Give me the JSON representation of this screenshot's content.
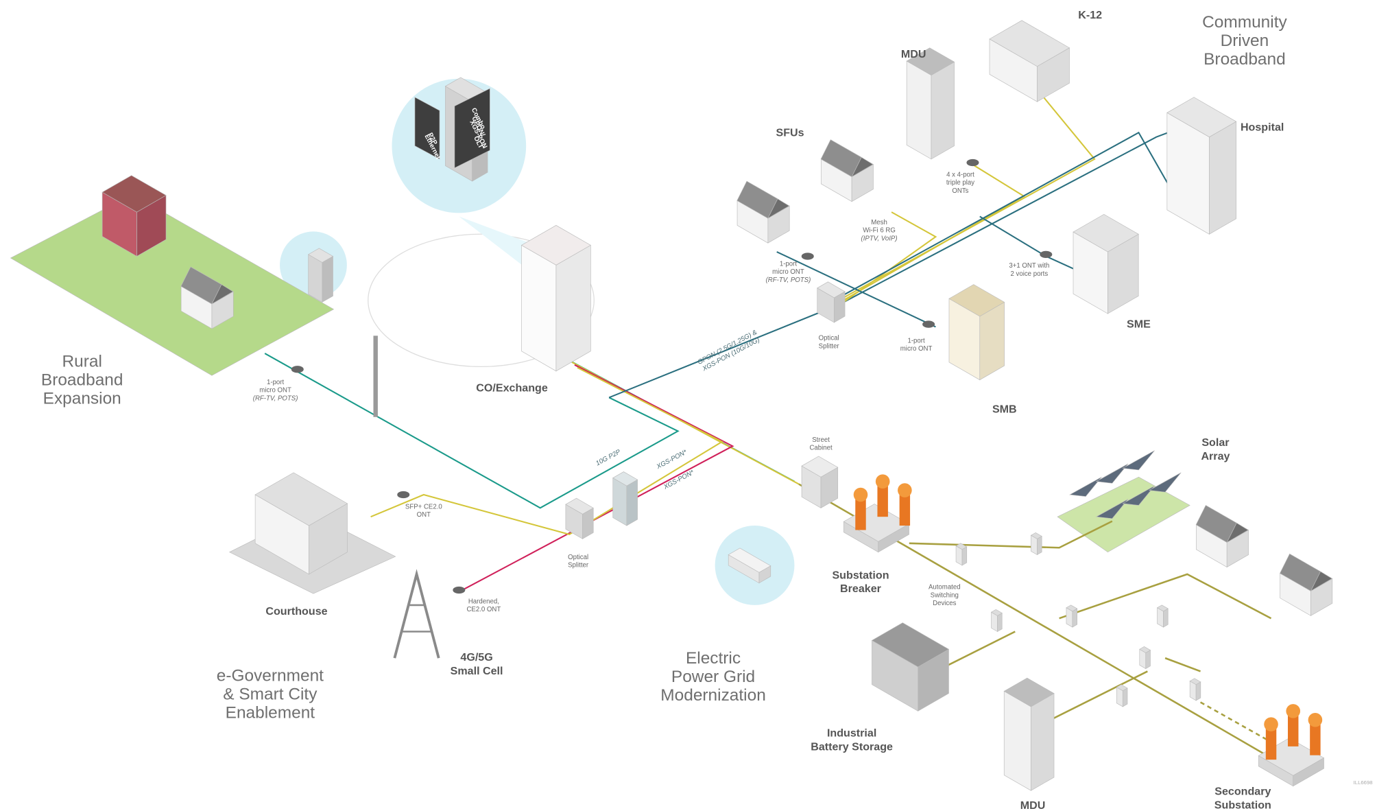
{
  "sections": [
    {
      "lines": [
        "Rural",
        "Broadband",
        "Expansion"
      ]
    },
    {
      "lines": [
        "Community",
        "Driven",
        "Broadband"
      ]
    },
    {
      "lines": [
        "e-Government",
        "& Smart City",
        "Enablement"
      ]
    },
    {
      "lines": [
        "Electric",
        "Power Grid",
        "Modernization"
      ]
    }
  ],
  "nodes": [
    {
      "lines": [
        "CO/Exchange"
      ]
    },
    {
      "lines": [
        "SFUs"
      ]
    },
    {
      "lines": [
        "MDU"
      ]
    },
    {
      "lines": [
        "K-12"
      ]
    },
    {
      "lines": [
        "Hospital"
      ]
    },
    {
      "lines": [
        "SME"
      ]
    },
    {
      "lines": [
        "SMB"
      ]
    },
    {
      "lines": [
        "Solar",
        "Array"
      ]
    },
    {
      "lines": [
        "Courthouse"
      ]
    },
    {
      "lines": [
        "4G/5G",
        "Small Cell"
      ]
    },
    {
      "lines": [
        "Substation",
        "Breaker"
      ]
    },
    {
      "lines": [
        "Industrial",
        "Battery Storage"
      ]
    },
    {
      "lines": [
        "MDU"
      ]
    },
    {
      "lines": [
        "Secondary",
        "Substation"
      ]
    }
  ],
  "devices": [
    {
      "lines": [
        "1-port",
        "micro ONT",
        "(RF-TV, POTS)"
      ]
    },
    {
      "lines": [
        "1-port",
        "micro ONT",
        "(RF-TV, POTS)"
      ]
    },
    {
      "lines": [
        "Mesh",
        "Wi-Fi 6 RG",
        "(IPTV, VoIP)"
      ]
    },
    {
      "lines": [
        "4 x 4-port",
        "triple play",
        "ONTs"
      ]
    },
    {
      "lines": [
        "3+1 ONT with",
        "2 voice ports"
      ]
    },
    {
      "lines": [
        "1-port",
        "micro ONT"
      ]
    },
    {
      "lines": [
        "Optical",
        "Splitter"
      ]
    },
    {
      "lines": [
        "Street",
        "Cabinet"
      ]
    },
    {
      "lines": [
        "Automated",
        "Switching",
        "Devices"
      ]
    },
    {
      "lines": [
        "SFP+ CE2.0",
        "ONT"
      ]
    },
    {
      "lines": [
        "Optical",
        "Splitter"
      ]
    },
    {
      "lines": [
        "Hardened,",
        "CE2.0 ONT"
      ]
    }
  ],
  "link_labels": [
    {
      "lines": [
        "GPON (2.5G/1.25G) &",
        "XGS-PON (10G/10G)"
      ]
    },
    {
      "lines": [
        "10G P2P"
      ]
    },
    {
      "lines": [
        "XGS-PON*"
      ]
    },
    {
      "lines": [
        "XGS-PON*"
      ]
    }
  ],
  "olt": {
    "p2p": [
      "P2P",
      "Ethernet"
    ],
    "combo": [
      "Combo",
      "GPON/",
      "XGS-PON",
      "OLT"
    ]
  },
  "footer_code": "ILL6698"
}
